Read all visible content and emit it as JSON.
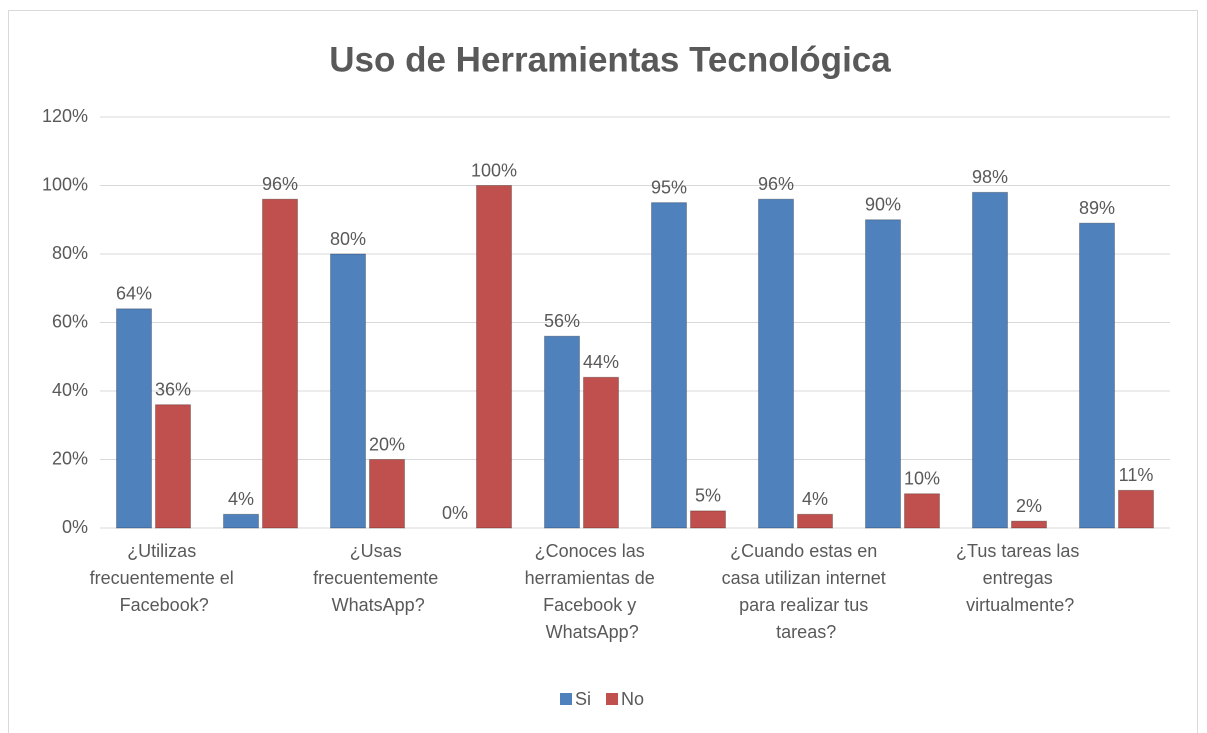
{
  "chart_data": {
    "type": "bar",
    "title": "Uso de Herramientas Tecnológica",
    "categories": [
      "¿Utilizas frecuentemente el Facebook?",
      null,
      "¿Usas frecuentemente WhatsApp?",
      null,
      "¿Conoces las herramientas de Facebook y WhatsApp?",
      null,
      "¿Cuando estas en casa utilizan internet para realizar tus tareas?",
      null,
      "¿Tus tareas las entregas virtualmente?",
      null
    ],
    "series": [
      {
        "name": "Si",
        "color": "#4f81bd",
        "values": [
          64,
          4,
          80,
          0,
          56,
          95,
          96,
          90,
          98,
          89
        ],
        "value_labels": [
          "64%",
          "4%",
          "80%",
          "0%",
          "56%",
          "95%",
          "96%",
          "90%",
          "98%",
          "89%"
        ]
      },
      {
        "name": "No",
        "color": "#c0504d",
        "values": [
          36,
          96,
          20,
          100,
          44,
          5,
          4,
          10,
          2,
          11
        ],
        "value_labels": [
          "36%",
          "96%",
          "20%",
          "100%",
          "44%",
          "5%",
          "4%",
          "10%",
          "2%",
          "11%"
        ]
      }
    ],
    "ylim": [
      0,
      120
    ],
    "yticks": [
      {
        "value": 0,
        "label": "0%"
      },
      {
        "value": 20,
        "label": "20%"
      },
      {
        "value": 40,
        "label": "40%"
      },
      {
        "value": 60,
        "label": "60%"
      },
      {
        "value": 80,
        "label": "80%"
      },
      {
        "value": 100,
        "label": "100%"
      },
      {
        "value": 120,
        "label": "120%"
      }
    ],
    "grid": true,
    "legend": "bottom"
  }
}
